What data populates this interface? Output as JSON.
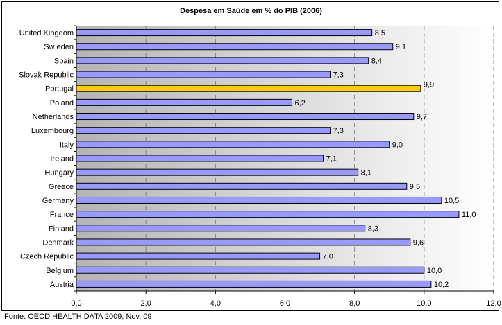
{
  "chart_data": {
    "type": "bar",
    "orientation": "horizontal",
    "title": "Despesa em Saúde em % do PIB (2006)",
    "categories": [
      "United Kingdom",
      "Sw eden",
      "Spain",
      "Slovak Republic",
      "Portugal",
      "Poland",
      "Netherlands",
      "Luxembourg",
      "Italy",
      "Ireland",
      "Hungary",
      "Greece",
      "Germany",
      "France",
      "Finland",
      "Denmark",
      "Czech Republic",
      "Belgium",
      "Austria"
    ],
    "values": [
      8.5,
      9.1,
      8.4,
      7.3,
      9.9,
      6.2,
      9.7,
      7.3,
      9.0,
      7.1,
      8.1,
      9.5,
      10.5,
      11.0,
      8.3,
      9.6,
      7.0,
      10.0,
      10.2
    ],
    "value_labels": [
      "8,5",
      "9,1",
      "8,4",
      "7,3",
      "9,9",
      "6,2",
      "9,7",
      "7,3",
      "9,0",
      "7,1",
      "8,1",
      "9,5",
      "10,5",
      "11,0",
      "8,3",
      "9,6",
      "7,0",
      "10,0",
      "10,2"
    ],
    "highlight": "Portugal",
    "xlim": [
      0,
      12
    ],
    "xticks": [
      0,
      2,
      4,
      6,
      8,
      10,
      12
    ],
    "xtick_labels": [
      "0,0",
      "2,0",
      "4,0",
      "6,0",
      "8,0",
      "10,0",
      "12,0"
    ],
    "grid": "vertical dashed",
    "legend": "none"
  },
  "colors": {
    "bar": "#9999ff",
    "bar_highlight": "#ffcc00",
    "bar_edge": "#000000",
    "grid": "#808080",
    "gradient_left": "#b4b4b4",
    "gradient_right": "#ffffff"
  },
  "footer": {
    "source": "Fonte: OECD HEALTH DATA 2009, Nov. 09"
  }
}
